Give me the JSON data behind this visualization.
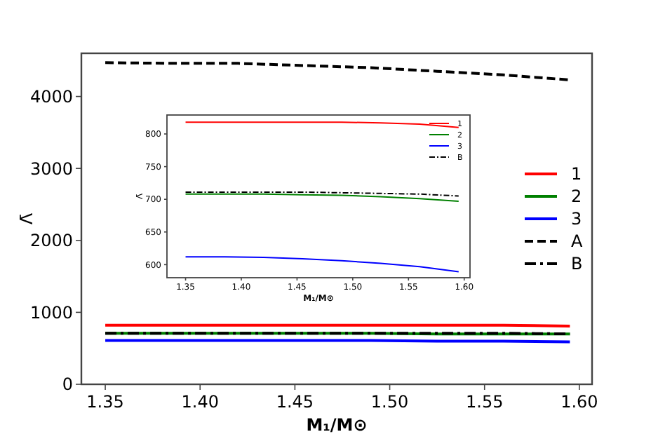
{
  "chart_data": [
    {
      "type": "line",
      "xlabel": "M₁/M⊙",
      "ylabel": "Λ̄",
      "x": [
        1.35,
        1.385,
        1.42,
        1.455,
        1.49,
        1.525,
        1.56,
        1.595
      ],
      "series": [
        {
          "name": "1",
          "color": "#ff0000",
          "line_style": "solid",
          "values": [
            820,
            820,
            820,
            820,
            820,
            820,
            820,
            810
          ]
        },
        {
          "name": "2",
          "color": "#008000",
          "line_style": "solid",
          "values": [
            710,
            710,
            710,
            710,
            710,
            700,
            700,
            700
          ]
        },
        {
          "name": "3",
          "color": "#0000ff",
          "line_style": "solid",
          "values": [
            610,
            610,
            610,
            610,
            610,
            600,
            600,
            590
          ]
        },
        {
          "name": "A",
          "color": "#000000",
          "line_style": "dashed",
          "values": [
            4470,
            4460,
            4460,
            4430,
            4400,
            4350,
            4300,
            4230
          ]
        },
        {
          "name": "B",
          "color": "#000000",
          "line_style": "dashdot",
          "values": [
            710,
            710,
            710,
            710,
            710,
            710,
            710,
            700
          ]
        }
      ],
      "xlim": [
        1.3374,
        1.6067
      ],
      "ylim": [
        0,
        4600
      ],
      "xticks": [
        {
          "value": 1.35,
          "label": "1.35"
        },
        {
          "value": 1.4,
          "label": "1.40"
        },
        {
          "value": 1.45,
          "label": "1.45"
        },
        {
          "value": 1.5,
          "label": "1.50"
        },
        {
          "value": 1.55,
          "label": "1.55"
        },
        {
          "value": 1.6,
          "label": "1.60"
        }
      ],
      "yticks": [
        0,
        1000,
        2000,
        3000,
        4000
      ],
      "grid": false,
      "legend": "right",
      "marker": "none"
    },
    {
      "type": "line",
      "xlabel": "M₁/M⊙",
      "ylabel": "Λ̄",
      "x": [
        1.35,
        1.385,
        1.42,
        1.455,
        1.49,
        1.525,
        1.56,
        1.595
      ],
      "series": [
        {
          "name": "1",
          "color": "#ff0000",
          "line_style": "solid",
          "values": [
            818,
            818,
            818,
            818,
            818,
            817,
            815,
            810
          ]
        },
        {
          "name": "2",
          "color": "#008000",
          "line_style": "solid",
          "values": [
            708,
            708,
            708,
            707,
            706,
            704,
            701,
            697
          ]
        },
        {
          "name": "3",
          "color": "#0000ff",
          "line_style": "solid",
          "values": [
            612,
            612,
            611,
            609,
            606,
            602,
            597,
            589
          ]
        },
        {
          "name": "B",
          "color": "#000000",
          "line_style": "dashdot",
          "values": [
            711,
            711,
            711,
            711,
            710,
            709,
            708,
            705
          ]
        }
      ],
      "xlim": [
        1.3333,
        1.6052
      ],
      "ylim": [
        580,
        829
      ],
      "xticks": [
        {
          "value": 1.35,
          "label": "1.35"
        },
        {
          "value": 1.4,
          "label": "1.40"
        },
        {
          "value": 1.45,
          "label": "1.45"
        },
        {
          "value": 1.5,
          "label": "1.50"
        },
        {
          "value": 1.55,
          "label": "1.55"
        },
        {
          "value": 1.6,
          "label": "1.60"
        }
      ],
      "yticks": [
        600,
        650,
        700,
        750,
        800
      ],
      "grid": false,
      "legend": "top right",
      "marker": "none"
    }
  ]
}
